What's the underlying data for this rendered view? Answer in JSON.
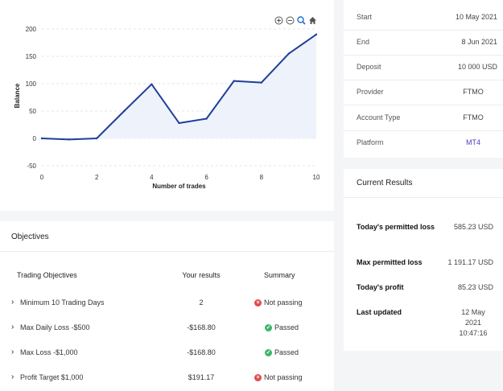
{
  "chart_data": {
    "type": "area",
    "x": [
      0,
      1,
      2,
      3,
      4,
      5,
      6,
      7,
      8,
      9,
      10
    ],
    "y": [
      0,
      -2,
      0,
      50,
      99,
      28,
      36,
      105,
      102,
      155,
      190
    ],
    "xticks": [
      0,
      2,
      4,
      6,
      8,
      10
    ],
    "yticks": [
      200,
      150,
      100,
      50,
      0,
      -50
    ],
    "xlabel": "Number of trades",
    "ylabel": "Balance",
    "xlim": [
      0,
      10
    ],
    "ylim": [
      -50,
      200
    ],
    "line_color": "#1f3f99",
    "fill_color": "#eef2fa"
  },
  "chart_toolbar": {
    "zoom_in_icon": "zoom-in-icon",
    "zoom_out_icon": "zoom-out-icon",
    "zoom_select_icon": "magnify-icon",
    "reset_icon": "home-icon"
  },
  "account_info": [
    {
      "label": "Start",
      "value": "10 May 2021"
    },
    {
      "label": "End",
      "value": "8 Jun 2021"
    },
    {
      "label": "Deposit",
      "value": "10 000 USD"
    },
    {
      "label": "Provider",
      "value": "FTMO"
    },
    {
      "label": "Account Type",
      "value": "FTMO"
    },
    {
      "label": "Platform",
      "value": "MT4"
    }
  ],
  "current_results": {
    "title": "Current Results",
    "rows": [
      {
        "label": "Today's permitted loss",
        "value": "585.23 USD"
      },
      {
        "label": "Max permitted loss",
        "value": "1 191.17 USD"
      },
      {
        "label": "Today's profit",
        "value": "85.23 USD"
      },
      {
        "label": "Last updated",
        "value": "12 May 2021 10:47:16"
      }
    ]
  },
  "objectives": {
    "title": "Objectives",
    "headers": {
      "objective": "Trading Objectives",
      "result": "Your results",
      "summary": "Summary"
    },
    "rows": [
      {
        "name": "Minimum 10 Trading Days",
        "result": "2",
        "summary": "Not passing",
        "status": "fail"
      },
      {
        "name": "Max Daily Loss -$500",
        "result": "-$168.80",
        "summary": "Passed",
        "status": "pass"
      },
      {
        "name": "Max Loss -$1,000",
        "result": "-$168.80",
        "summary": "Passed",
        "status": "pass"
      },
      {
        "name": "Profit Target $1,000",
        "result": "$191.17",
        "summary": "Not passing",
        "status": "fail"
      }
    ]
  },
  "colors": {
    "pass": "#3db56b",
    "fail": "#e34b4b",
    "accent": "#4a3fbf"
  }
}
